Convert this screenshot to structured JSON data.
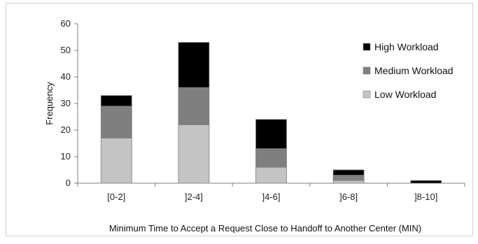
{
  "chart_data": {
    "type": "bar",
    "stacked": true,
    "categories": [
      "[0-2]",
      "]2-4]",
      "]4-6]",
      "]6-8]",
      "]8-10]"
    ],
    "series": [
      {
        "name": "Low Workload",
        "values": [
          17,
          22,
          6,
          1,
          0
        ],
        "color": "#c4c4c4"
      },
      {
        "name": "Medium Workload",
        "values": [
          12,
          14,
          7,
          2,
          0
        ],
        "color": "#7f7f7f"
      },
      {
        "name": "High Workload",
        "values": [
          4,
          17,
          11,
          2,
          1
        ],
        "color": "#000000"
      }
    ],
    "legend_order": [
      "High Workload",
      "Medium Workload",
      "Low Workload"
    ],
    "legend_position": "top-right",
    "xlabel": "Minimum Time to Accept a Request Close to Handoff to Another Center (MIN)",
    "ylabel": "Frequency",
    "ylim": [
      0,
      60
    ],
    "yticks": [
      0,
      10,
      20,
      30,
      40,
      50,
      60
    ],
    "grid": false
  }
}
